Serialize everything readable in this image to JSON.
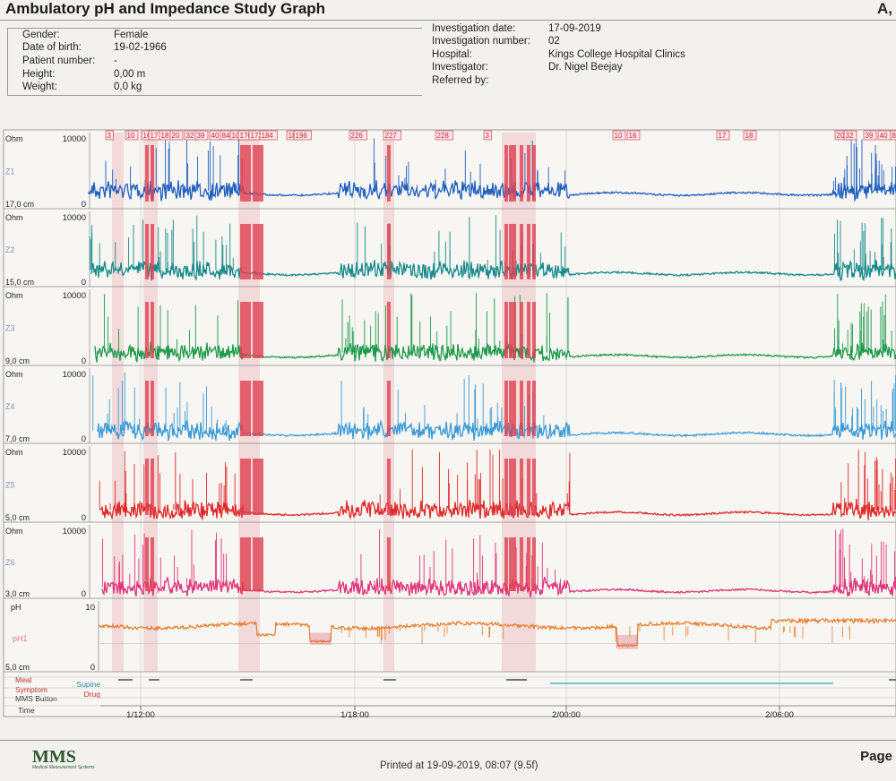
{
  "header": {
    "title": "Ambulatory pH and Impedance Study Graph",
    "corner_mark": "A,"
  },
  "patient": {
    "gender_label": "Gender:",
    "gender": "Female",
    "dob_label": "Date of birth:",
    "dob": "19-02-1966",
    "patient_number_label": "Patient number:",
    "patient_number": "-",
    "height_label": "Height:",
    "height": "0,00 m",
    "weight_label": "Weight:",
    "weight": "0,0 kg"
  },
  "investigation": {
    "date_label": "Investigation date:",
    "date": "17-09-2019",
    "number_label": "Investigation number:",
    "number": "02",
    "hospital_label": "Hospital:",
    "hospital": "Kings College Hospital Clinics",
    "investigator_label": "Investigator:",
    "investigator": "Dr. Nigel Beejay",
    "referred_label": "Referred by:",
    "referred": ""
  },
  "footer": {
    "logo": "MMS",
    "logo_sub": "Medical Measurement Systems",
    "printed": "Printed at 19-09-2019, 08:07 (9.5f)",
    "page": "Page"
  },
  "colors": {
    "Z1": "#1f5fbf",
    "Z2": "#168a8a",
    "Z3": "#1c9a4a",
    "Z4": "#3a9ad6",
    "Z5": "#e02828",
    "Z6": "#e0357a",
    "pH1": "#e87b2a",
    "event_band": "#e06070",
    "event_box": "#e04050",
    "supine_line": "#2aa6b6"
  },
  "chart_data": {
    "type": "line",
    "x_unit": "day/hh:mm",
    "x_ticks": [
      "1/12:00",
      "1/18:00",
      "2/00:00",
      "2/06:00"
    ],
    "impedance_channels": [
      {
        "name": "Z1",
        "unit": "Ohm",
        "ymax_label": "10000",
        "ymin_label": "0",
        "position_label": "17,0 cm",
        "baseline_ohm": 2400
      },
      {
        "name": "Z2",
        "unit": "Ohm",
        "ymax_label": "10000",
        "ymin_label": "0",
        "position_label": "15,0 cm",
        "baseline_ohm": 2200
      },
      {
        "name": "Z3",
        "unit": "Ohm",
        "ymax_label": "10000",
        "ymin_label": "0",
        "position_label": "9,0 cm",
        "baseline_ohm": 1700
      },
      {
        "name": "Z4",
        "unit": "Ohm",
        "ymax_label": "10000",
        "ymin_label": "0",
        "position_label": "7,0 cm",
        "baseline_ohm": 1700
      },
      {
        "name": "Z5",
        "unit": "Ohm",
        "ymax_label": "10000",
        "ymin_label": "0",
        "position_label": "5,0 cm",
        "baseline_ohm": 1600
      },
      {
        "name": "Z6",
        "unit": "Ohm",
        "ymax_label": "10000",
        "ymin_label": "0",
        "position_label": "3,0 cm",
        "baseline_ohm": 1500
      }
    ],
    "ph_channel": {
      "name": "pH1",
      "unit": "pH",
      "ymax_label": "10",
      "ymin_label": "0",
      "position_label": "5,0 cm",
      "typical_value": 6.5
    },
    "event_labels": [
      "3",
      "10",
      "16",
      "17",
      "18",
      "20",
      "32",
      "39",
      "40",
      "84",
      "104",
      "170",
      "172",
      "184",
      "186",
      "196",
      "226",
      "227",
      "228"
    ],
    "bottom_rows": [
      "Meal",
      "Symptom",
      "Supine",
      "Drug",
      "MMS Button",
      "Time"
    ]
  }
}
